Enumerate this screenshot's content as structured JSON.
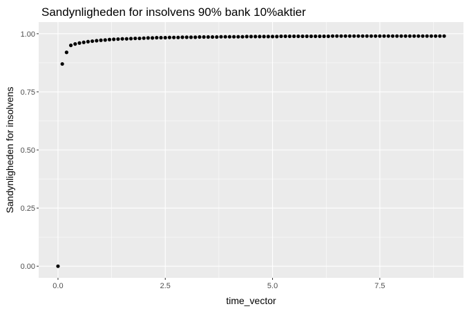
{
  "chart_data": {
    "type": "scatter",
    "title": "Sandynligheden for insolvens 90% bank 10%aktier",
    "xlabel": "time_vector",
    "ylabel": "Sandynligheden for insolvens",
    "xlim": [
      -0.45,
      9.45
    ],
    "ylim": [
      -0.05,
      1.05
    ],
    "x_ticks": [
      0,
      2.5,
      5,
      7.5
    ],
    "x_tick_labels": [
      "0.0",
      "2.5",
      "5.0",
      "7.5"
    ],
    "y_ticks": [
      0,
      0.25,
      0.5,
      0.75,
      1
    ],
    "y_tick_labels": [
      "0.00",
      "0.25",
      "0.50",
      "0.75",
      "1.00"
    ],
    "grid": true,
    "panel_background": "#ebebeb",
    "grid_color": "#ffffff",
    "point_color": "#000000",
    "points": [
      [
        0.0,
        0.0
      ],
      [
        0.1,
        0.87
      ],
      [
        0.2,
        0.92
      ],
      [
        0.3,
        0.95
      ],
      [
        0.4,
        0.956
      ],
      [
        0.5,
        0.96
      ],
      [
        0.6,
        0.963
      ],
      [
        0.7,
        0.966
      ],
      [
        0.8,
        0.968
      ],
      [
        0.9,
        0.97
      ],
      [
        1.0,
        0.972
      ],
      [
        1.1,
        0.973
      ],
      [
        1.2,
        0.975
      ],
      [
        1.3,
        0.976
      ],
      [
        1.4,
        0.977
      ],
      [
        1.5,
        0.978
      ],
      [
        1.6,
        0.978
      ],
      [
        1.7,
        0.979
      ],
      [
        1.8,
        0.98
      ],
      [
        1.9,
        0.98
      ],
      [
        2.0,
        0.981
      ],
      [
        2.1,
        0.982
      ],
      [
        2.2,
        0.982
      ],
      [
        2.3,
        0.983
      ],
      [
        2.4,
        0.983
      ],
      [
        2.5,
        0.983
      ],
      [
        2.6,
        0.984
      ],
      [
        2.7,
        0.984
      ],
      [
        2.8,
        0.984
      ],
      [
        2.9,
        0.985
      ],
      [
        3.0,
        0.985
      ],
      [
        3.1,
        0.985
      ],
      [
        3.2,
        0.985
      ],
      [
        3.3,
        0.986
      ],
      [
        3.4,
        0.986
      ],
      [
        3.5,
        0.986
      ],
      [
        3.6,
        0.986
      ],
      [
        3.7,
        0.986
      ],
      [
        3.8,
        0.987
      ],
      [
        3.9,
        0.987
      ],
      [
        4.0,
        0.987
      ],
      [
        4.1,
        0.987
      ],
      [
        4.2,
        0.987
      ],
      [
        4.3,
        0.987
      ],
      [
        4.4,
        0.988
      ],
      [
        4.5,
        0.988
      ],
      [
        4.6,
        0.988
      ],
      [
        4.7,
        0.988
      ],
      [
        4.8,
        0.988
      ],
      [
        4.9,
        0.988
      ],
      [
        5.0,
        0.988
      ],
      [
        5.1,
        0.988
      ],
      [
        5.2,
        0.989
      ],
      [
        5.3,
        0.989
      ],
      [
        5.4,
        0.989
      ],
      [
        5.5,
        0.989
      ],
      [
        5.6,
        0.989
      ],
      [
        5.7,
        0.989
      ],
      [
        5.8,
        0.989
      ],
      [
        5.9,
        0.989
      ],
      [
        6.0,
        0.989
      ],
      [
        6.1,
        0.989
      ],
      [
        6.2,
        0.989
      ],
      [
        6.3,
        0.989
      ],
      [
        6.4,
        0.99
      ],
      [
        6.5,
        0.99
      ],
      [
        6.6,
        0.99
      ],
      [
        6.7,
        0.99
      ],
      [
        6.8,
        0.99
      ],
      [
        6.9,
        0.99
      ],
      [
        7.0,
        0.99
      ],
      [
        7.1,
        0.99
      ],
      [
        7.2,
        0.99
      ],
      [
        7.3,
        0.99
      ],
      [
        7.4,
        0.99
      ],
      [
        7.5,
        0.99
      ],
      [
        7.6,
        0.99
      ],
      [
        7.7,
        0.99
      ],
      [
        7.8,
        0.99
      ],
      [
        7.9,
        0.99
      ],
      [
        8.0,
        0.99
      ],
      [
        8.1,
        0.99
      ],
      [
        8.2,
        0.99
      ],
      [
        8.3,
        0.99
      ],
      [
        8.4,
        0.99
      ],
      [
        8.5,
        0.99
      ],
      [
        8.6,
        0.99
      ],
      [
        8.7,
        0.99
      ],
      [
        8.8,
        0.99
      ],
      [
        8.9,
        0.99
      ],
      [
        9.0,
        0.99
      ]
    ]
  }
}
